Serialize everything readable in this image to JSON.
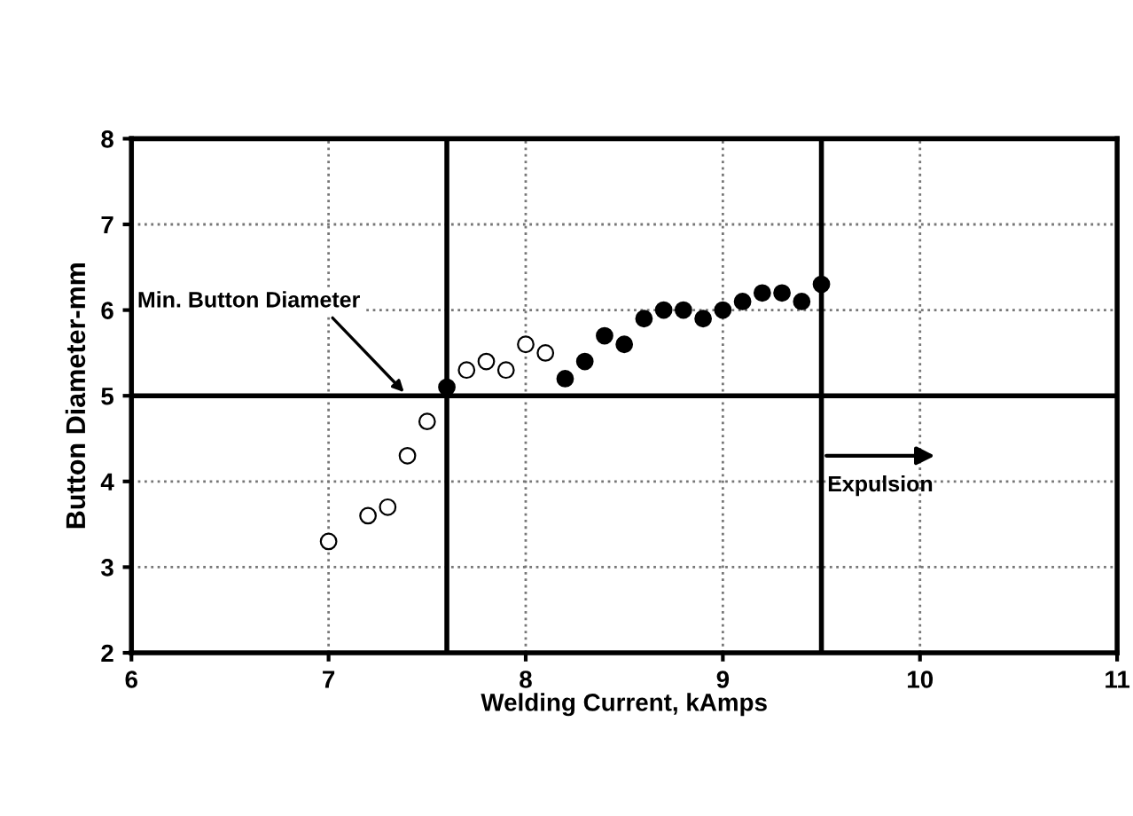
{
  "chart_data": {
    "type": "scatter",
    "xlabel": "Welding Current, kAmps",
    "ylabel": "Button Diameter-mm",
    "xlim": [
      6,
      11
    ],
    "xticks": [
      6,
      7,
      8,
      9,
      10,
      11
    ],
    "ylim": [
      2,
      8
    ],
    "yticks": [
      2,
      3,
      4,
      5,
      6,
      7,
      8
    ],
    "grid": true,
    "marker": "circle",
    "series": [
      {
        "color": "#ffffff",
        "x": [
          7.0,
          7.2,
          7.3,
          7.4,
          7.5,
          7.7,
          7.8,
          7.9,
          8.0,
          8.1
        ],
        "values": [
          3.3,
          3.6,
          3.7,
          4.3,
          4.7,
          5.3,
          5.4,
          5.3,
          5.6,
          5.5
        ]
      },
      {
        "color": "#000000",
        "x": [
          7.6,
          8.2,
          8.3,
          8.4,
          8.5,
          8.6,
          8.7,
          8.8,
          8.9,
          9.0,
          9.1,
          9.2,
          9.3,
          9.4,
          9.5
        ],
        "values": [
          5.1,
          5.2,
          5.4,
          5.7,
          5.6,
          5.9,
          6.0,
          6.0,
          5.9,
          6.0,
          6.1,
          6.2,
          6.2,
          6.1,
          6.3
        ]
      }
    ],
    "ref_lines": [
      {
        "axis": "y",
        "value": 5
      },
      {
        "axis": "x",
        "value": 7.6
      },
      {
        "axis": "x",
        "value": 9.5
      }
    ],
    "annotations": [
      {
        "text": "Min. Button Diameter",
        "x": 7.4,
        "y": 5
      },
      {
        "text": "Expulsion",
        "x": 9.5,
        "y": 4.3
      }
    ]
  }
}
